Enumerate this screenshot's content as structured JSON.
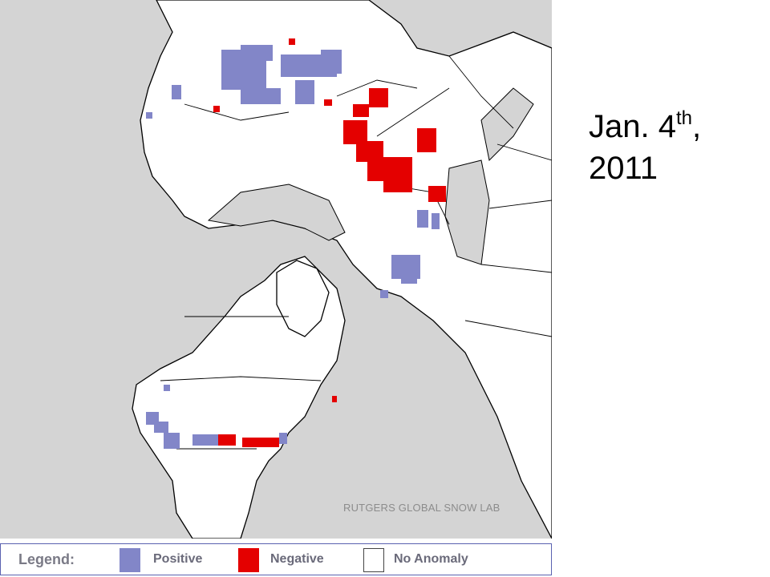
{
  "title": {
    "month_day": "Jan. 4",
    "ordinal_suffix": "th",
    "comma": ",",
    "year": "2011"
  },
  "map": {
    "credit": "RUTGERS GLOBAL SNOW LAB",
    "projection": "polar stereographic, Northern Hemisphere",
    "colors": {
      "background": "#d4d4d4",
      "no_anomaly": "#ffffff",
      "positive": "#8286c8",
      "negative": "#e40000",
      "outline": "#000000"
    },
    "anomaly_regions": [
      {
        "name": "western-russia",
        "type": "positive"
      },
      {
        "name": "scandinavia",
        "type": "positive"
      },
      {
        "name": "central-asia",
        "type": "negative"
      },
      {
        "name": "east-asia",
        "type": "negative"
      },
      {
        "name": "east-asia",
        "type": "positive"
      },
      {
        "name": "korea-japan",
        "type": "positive"
      },
      {
        "name": "western-us",
        "type": "positive"
      },
      {
        "name": "central-us",
        "type": "positive"
      },
      {
        "name": "eastern-us",
        "type": "negative"
      }
    ]
  },
  "legend": {
    "title": "Legend:",
    "items": [
      {
        "label": "Positive",
        "color": "#8286c8"
      },
      {
        "label": "Negative",
        "color": "#e40000"
      },
      {
        "label": "No Anomaly",
        "color": "#ffffff"
      }
    ]
  }
}
